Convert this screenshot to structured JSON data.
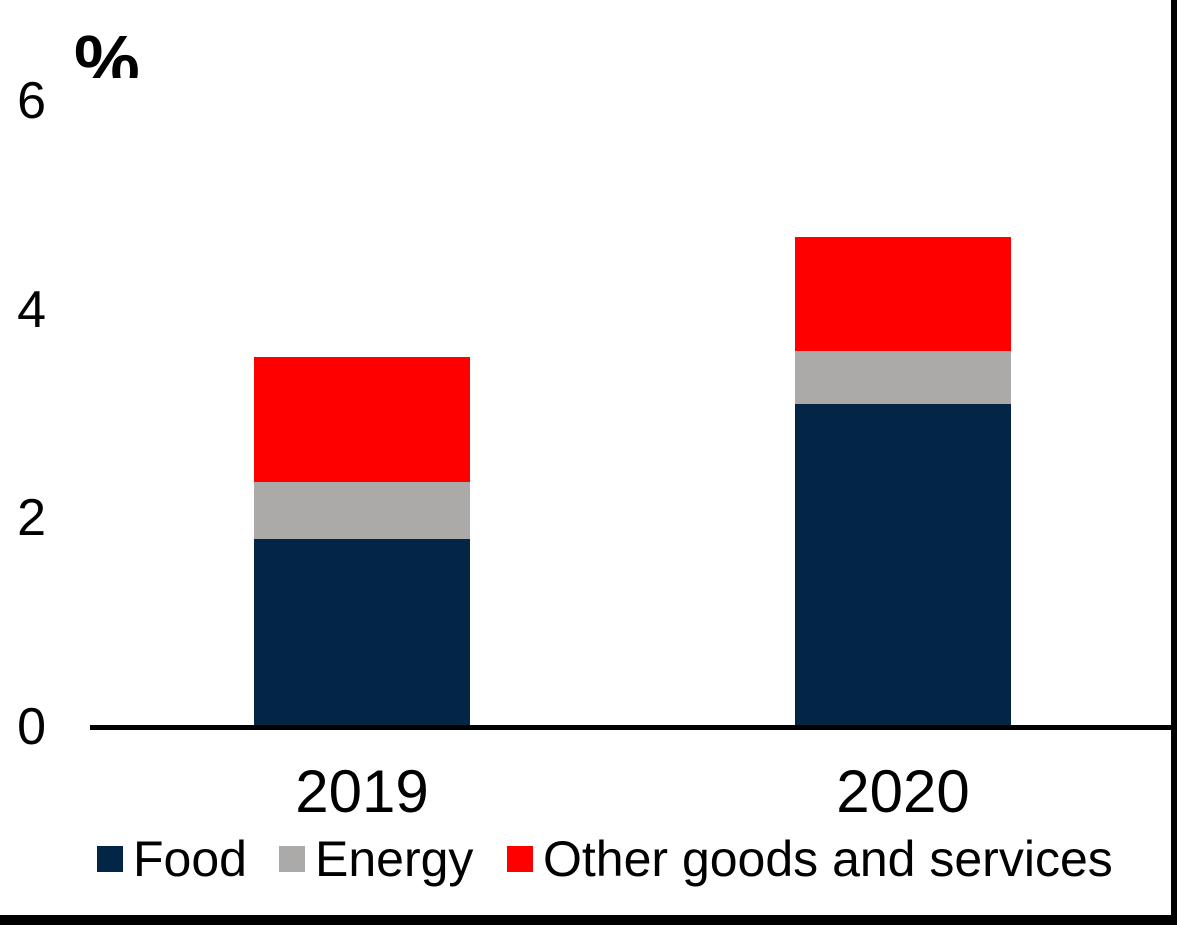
{
  "chart_data": {
    "type": "bar",
    "stacked": true,
    "title": "",
    "ylabel": "%",
    "xlabel": "",
    "ylim": [
      0,
      6
    ],
    "yticks": [
      0,
      2,
      4,
      6
    ],
    "grid": false,
    "legend_position": "bottom",
    "categories": [
      "2019",
      "2020"
    ],
    "series": [
      {
        "name": "Food",
        "color": "#032546",
        "values": [
          1.8,
          3.1
        ]
      },
      {
        "name": "Energy",
        "color": "#ACA9A9",
        "values": [
          0.55,
          0.5
        ]
      },
      {
        "name": "Other goods and services",
        "color": "#FE0000",
        "values": [
          1.2,
          1.1
        ]
      }
    ]
  },
  "frame": {
    "border_color": "#000000",
    "axis_color": "#000000"
  }
}
